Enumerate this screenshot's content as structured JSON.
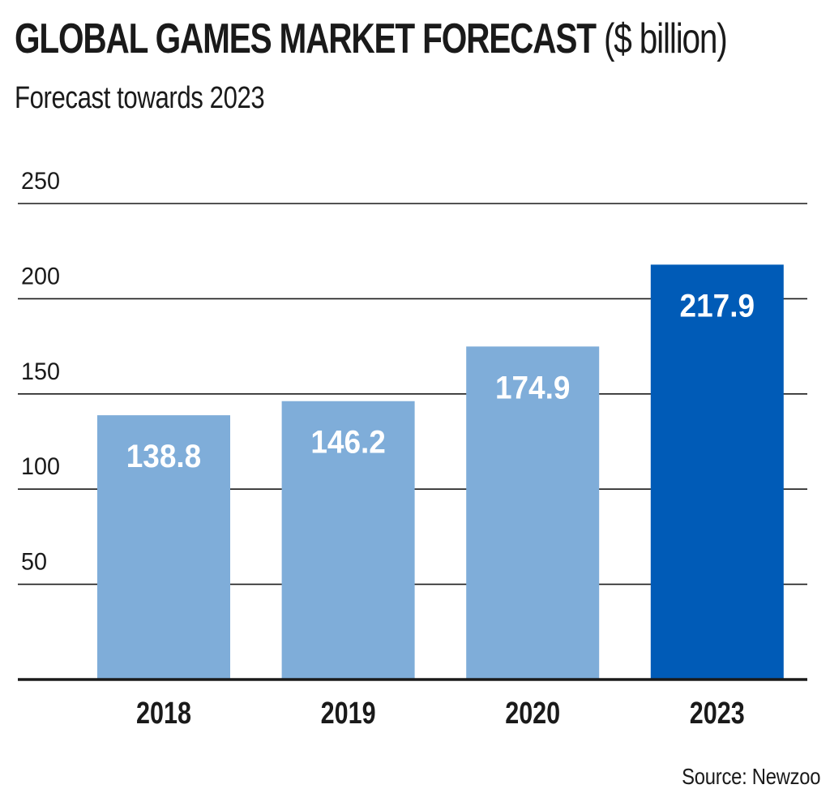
{
  "title": "GLOBAL GAMES MARKET FORECAST",
  "title_unit": "($ billion)",
  "subtitle": "Forecast towards 2023",
  "source": "Source: Newzoo",
  "colors": {
    "bar_forecast_past": "#7fadd9",
    "bar_highlight": "#005bb7",
    "grid": "#1a1a1a",
    "label_on_bar": "#ffffff",
    "text": "#1a1a1a"
  },
  "chart_data": {
    "type": "bar",
    "title": "GLOBAL GAMES MARKET FORECAST ($ billion)",
    "subtitle": "Forecast towards 2023",
    "categories": [
      "2018",
      "2019",
      "2020",
      "2023"
    ],
    "values": [
      138.8,
      146.2,
      174.9,
      217.9
    ],
    "value_labels": [
      "138.8",
      "146.2",
      "174.9",
      "217.9"
    ],
    "highlighted_category": "2023",
    "ylim": [
      0,
      250
    ],
    "yticks": [
      50,
      100,
      150,
      200,
      250
    ],
    "ytick_labels": [
      "50",
      "100",
      "150",
      "200",
      "250"
    ],
    "grid": true,
    "xlabel": "",
    "ylabel": ""
  }
}
